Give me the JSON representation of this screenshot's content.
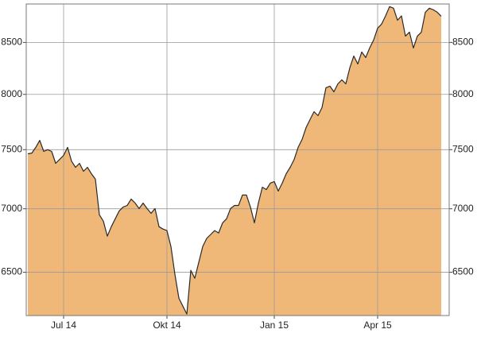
{
  "chart_data": {
    "type": "area",
    "log_y": true,
    "grid": true,
    "y_axis_sides": [
      "left",
      "right"
    ],
    "color": "#efb878",
    "line_color": "#2a2a2a",
    "categories": [
      null,
      null,
      null,
      null,
      null,
      null,
      null,
      null,
      null,
      "Jul 14",
      null,
      null,
      null,
      null,
      null,
      null,
      null,
      null,
      null,
      null,
      null,
      null,
      null,
      null,
      null,
      null,
      null,
      null,
      null,
      null,
      null,
      null,
      null,
      null,
      null,
      "Okt 14",
      null,
      null,
      null,
      null,
      null,
      null,
      null,
      null,
      null,
      null,
      null,
      null,
      null,
      null,
      null,
      null,
      null,
      null,
      null,
      null,
      null,
      null,
      null,
      null,
      null,
      null,
      "Jan 15",
      null,
      null,
      null,
      null,
      null,
      null,
      null,
      null,
      null,
      null,
      null,
      null,
      null,
      null,
      null,
      null,
      null,
      null,
      null,
      null,
      null,
      null,
      null,
      null,
      null,
      "Apr 15",
      null,
      null,
      null,
      null,
      null,
      null,
      null,
      null,
      null,
      null,
      null,
      null,
      null,
      null,
      null,
      null
    ],
    "values": [
      7464,
      7470,
      7520,
      7582,
      7485,
      7500,
      7485,
      7381,
      7415,
      7450,
      7520,
      7400,
      7347,
      7381,
      7313,
      7347,
      7292,
      7246,
      6951,
      6900,
      6780,
      6855,
      6919,
      6983,
      7015,
      7027,
      7080,
      7047,
      7002,
      7047,
      7002,
      6963,
      7002,
      6855,
      6836,
      6824,
      6699,
      6485,
      6307,
      6248,
      6191,
      6515,
      6455,
      6575,
      6699,
      6762,
      6793,
      6824,
      6805,
      6886,
      6919,
      7002,
      7027,
      7027,
      7113,
      7113,
      7015,
      6886,
      7047,
      7179,
      7159,
      7213,
      7226,
      7146,
      7213,
      7292,
      7347,
      7415,
      7520,
      7590,
      7696,
      7768,
      7840,
      7804,
      7877,
      8062,
      8077,
      8024,
      8099,
      8137,
      8099,
      8251,
      8367,
      8289,
      8406,
      8351,
      8445,
      8524,
      8643,
      8684,
      8767,
      8863,
      8846,
      8723,
      8767,
      8563,
      8603,
      8445,
      8563,
      8603,
      8805,
      8846,
      8830,
      8805,
      8764
    ],
    "ylim": [
      6180,
      8890
    ],
    "yticks": [
      6500,
      7000,
      7500,
      8000,
      8500
    ]
  }
}
